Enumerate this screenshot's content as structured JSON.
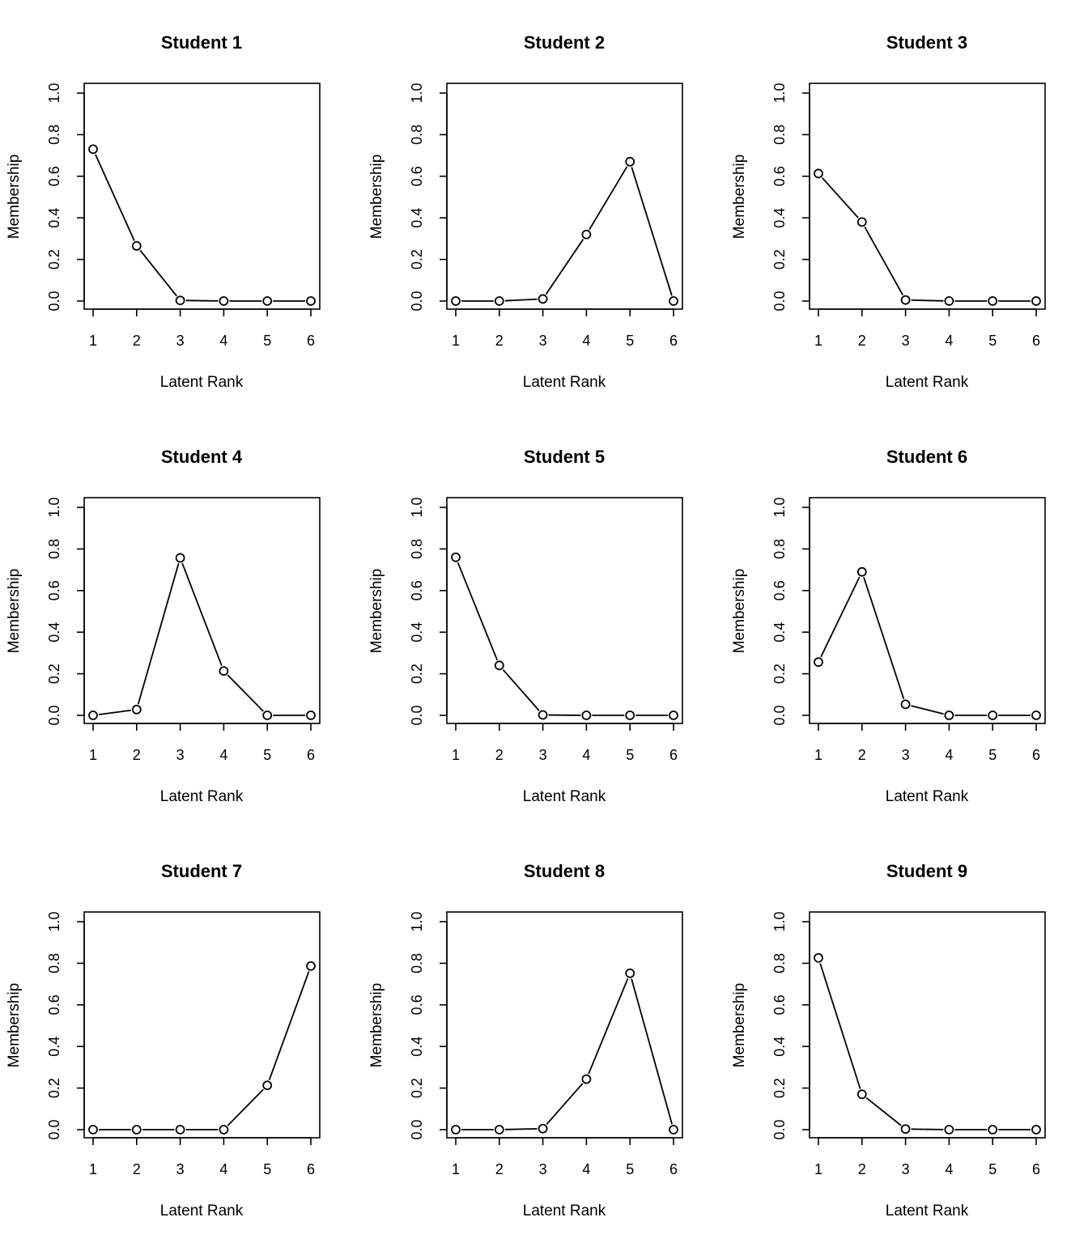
{
  "chart_data": [
    {
      "type": "line",
      "title": "Student 1",
      "xlabel": "Latent Rank",
      "ylabel": "Membership",
      "x": [
        1,
        2,
        3,
        4,
        5,
        6
      ],
      "values": [
        0.73,
        0.265,
        0.003,
        0.0,
        0.0,
        0.0
      ],
      "xlim": [
        1,
        6
      ],
      "ylim": [
        0,
        1
      ],
      "yticks": [
        "0.0",
        "0.2",
        "0.4",
        "0.6",
        "0.8",
        "1.0"
      ],
      "xticks": [
        "1",
        "2",
        "3",
        "4",
        "5",
        "6"
      ],
      "marker": "open-circle",
      "grid": false
    },
    {
      "type": "line",
      "title": "Student 2",
      "xlabel": "Latent Rank",
      "ylabel": "Membership",
      "x": [
        1,
        2,
        3,
        4,
        5,
        6
      ],
      "values": [
        0.0,
        0.0,
        0.01,
        0.32,
        0.67,
        0.0
      ],
      "xlim": [
        1,
        6
      ],
      "ylim": [
        0,
        1
      ],
      "yticks": [
        "0.0",
        "0.2",
        "0.4",
        "0.6",
        "0.8",
        "1.0"
      ],
      "xticks": [
        "1",
        "2",
        "3",
        "4",
        "5",
        "6"
      ],
      "marker": "open-circle",
      "grid": false
    },
    {
      "type": "line",
      "title": "Student 3",
      "xlabel": "Latent Rank",
      "ylabel": "Membership",
      "x": [
        1,
        2,
        3,
        4,
        5,
        6
      ],
      "values": [
        0.613,
        0.38,
        0.005,
        0.0,
        0.0,
        0.0
      ],
      "xlim": [
        1,
        6
      ],
      "ylim": [
        0,
        1
      ],
      "yticks": [
        "0.0",
        "0.2",
        "0.4",
        "0.6",
        "0.8",
        "1.0"
      ],
      "xticks": [
        "1",
        "2",
        "3",
        "4",
        "5",
        "6"
      ],
      "marker": "open-circle",
      "grid": false
    },
    {
      "type": "line",
      "title": "Student 4",
      "xlabel": "Latent Rank",
      "ylabel": "Membership",
      "x": [
        1,
        2,
        3,
        4,
        5,
        6
      ],
      "values": [
        0.0,
        0.028,
        0.757,
        0.213,
        0.0,
        0.0
      ],
      "xlim": [
        1,
        6
      ],
      "ylim": [
        0,
        1
      ],
      "yticks": [
        "0.0",
        "0.2",
        "0.4",
        "0.6",
        "0.8",
        "1.0"
      ],
      "xticks": [
        "1",
        "2",
        "3",
        "4",
        "5",
        "6"
      ],
      "marker": "open-circle",
      "grid": false
    },
    {
      "type": "line",
      "title": "Student 5",
      "xlabel": "Latent Rank",
      "ylabel": "Membership",
      "x": [
        1,
        2,
        3,
        4,
        5,
        6
      ],
      "values": [
        0.76,
        0.24,
        0.002,
        0.0,
        0.0,
        0.0
      ],
      "xlim": [
        1,
        6
      ],
      "ylim": [
        0,
        1
      ],
      "yticks": [
        "0.0",
        "0.2",
        "0.4",
        "0.6",
        "0.8",
        "1.0"
      ],
      "xticks": [
        "1",
        "2",
        "3",
        "4",
        "5",
        "6"
      ],
      "marker": "open-circle",
      "grid": false
    },
    {
      "type": "line",
      "title": "Student 6",
      "xlabel": "Latent Rank",
      "ylabel": "Membership",
      "x": [
        1,
        2,
        3,
        4,
        5,
        6
      ],
      "values": [
        0.256,
        0.69,
        0.053,
        0.0,
        0.0,
        0.0
      ],
      "xlim": [
        1,
        6
      ],
      "ylim": [
        0,
        1
      ],
      "yticks": [
        "0.0",
        "0.2",
        "0.4",
        "0.6",
        "0.8",
        "1.0"
      ],
      "xticks": [
        "1",
        "2",
        "3",
        "4",
        "5",
        "6"
      ],
      "marker": "open-circle",
      "grid": false
    },
    {
      "type": "line",
      "title": "Student 7",
      "xlabel": "Latent Rank",
      "ylabel": "Membership",
      "x": [
        1,
        2,
        3,
        4,
        5,
        6
      ],
      "values": [
        0.0,
        0.0,
        0.0,
        0.0,
        0.213,
        0.787
      ],
      "xlim": [
        1,
        6
      ],
      "ylim": [
        0,
        1
      ],
      "yticks": [
        "0.0",
        "0.2",
        "0.4",
        "0.6",
        "0.8",
        "1.0"
      ],
      "xticks": [
        "1",
        "2",
        "3",
        "4",
        "5",
        "6"
      ],
      "marker": "open-circle",
      "grid": false
    },
    {
      "type": "line",
      "title": "Student 8",
      "xlabel": "Latent Rank",
      "ylabel": "Membership",
      "x": [
        1,
        2,
        3,
        4,
        5,
        6
      ],
      "values": [
        0.0,
        0.0,
        0.005,
        0.243,
        0.752,
        0.0
      ],
      "xlim": [
        1,
        6
      ],
      "ylim": [
        0,
        1
      ],
      "yticks": [
        "0.0",
        "0.2",
        "0.4",
        "0.6",
        "0.8",
        "1.0"
      ],
      "xticks": [
        "1",
        "2",
        "3",
        "4",
        "5",
        "6"
      ],
      "marker": "open-circle",
      "grid": false
    },
    {
      "type": "line",
      "title": "Student 9",
      "xlabel": "Latent Rank",
      "ylabel": "Membership",
      "x": [
        1,
        2,
        3,
        4,
        5,
        6
      ],
      "values": [
        0.826,
        0.17,
        0.003,
        0.0,
        0.0,
        0.0
      ],
      "xlim": [
        1,
        6
      ],
      "ylim": [
        0,
        1
      ],
      "yticks": [
        "0.0",
        "0.2",
        "0.4",
        "0.6",
        "0.8",
        "1.0"
      ],
      "xticks": [
        "1",
        "2",
        "3",
        "4",
        "5",
        "6"
      ],
      "marker": "open-circle",
      "grid": false
    }
  ]
}
